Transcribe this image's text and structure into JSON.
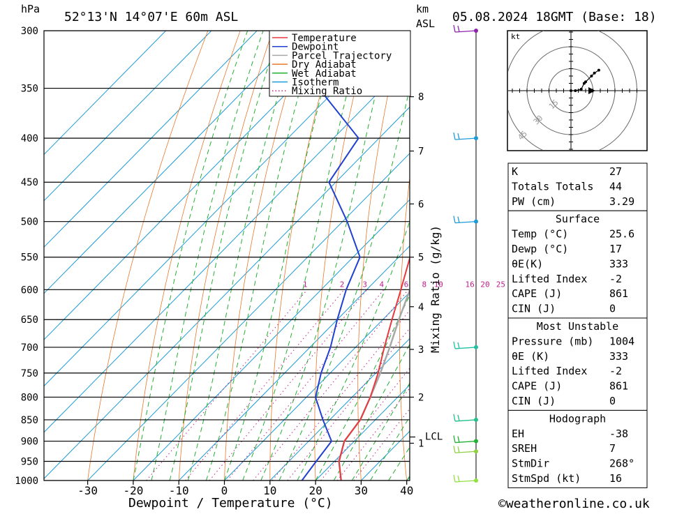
{
  "header": {
    "location": "52°13'N 14°07'E 60m ASL",
    "datetime": "05.08.2024 18GMT (Base: 18)",
    "pressure_unit": "hPa",
    "height_unit_line1": "km",
    "height_unit_line2": "ASL"
  },
  "footer": {
    "copyright": "©weatheronline.co.uk"
  },
  "chart_data": {
    "type": "line",
    "xlabel": "Dewpoint / Temperature (°C)",
    "ylabel": "hPa",
    "mixing_ratio_axis_label": "Mixing Ratio (g/kg)",
    "xlim": [
      -40,
      40
    ],
    "ylim": [
      1000,
      300
    ],
    "y_scale": "log",
    "skew": true,
    "grid": true,
    "legend_placement": "top-right",
    "x_ticks": [
      -30,
      -20,
      -10,
      0,
      10,
      20,
      30,
      40
    ],
    "pressure_levels": [
      300,
      350,
      400,
      450,
      500,
      550,
      600,
      650,
      700,
      750,
      800,
      850,
      900,
      950,
      1000
    ],
    "height_km_ticks": [
      {
        "km": 1,
        "p": 905
      },
      {
        "km": 2,
        "p": 800
      },
      {
        "km": 3,
        "p": 704
      },
      {
        "km": 4,
        "p": 628
      },
      {
        "km": 5,
        "p": 550
      },
      {
        "km": 6,
        "p": 477
      },
      {
        "km": 7,
        "p": 414
      },
      {
        "km": 8,
        "p": 358
      }
    ],
    "lcl": {
      "label": "LCL",
      "p": 890
    },
    "mixing_ratio_labels": [
      "1",
      "2",
      "3",
      "4",
      "6",
      "8",
      "10",
      "16",
      "20",
      "25"
    ],
    "legend": [
      "Temperature",
      "Dewpoint",
      "Parcel Trajectory",
      "Dry Adiabat",
      "Wet Adiabat",
      "Isotherm",
      "Mixing Ratio"
    ],
    "series": [
      {
        "name": "Temperature",
        "color": "#e8393f",
        "points": [
          [
            1000,
            25.6
          ],
          [
            950,
            21.0
          ],
          [
            900,
            17.8
          ],
          [
            850,
            16.7
          ],
          [
            800,
            14.0
          ],
          [
            750,
            10.5
          ],
          [
            700,
            6.3
          ],
          [
            650,
            2.0
          ],
          [
            600,
            -2.5
          ],
          [
            550,
            -7.5
          ],
          [
            500,
            -12.0
          ],
          [
            450,
            -18.5
          ],
          [
            400,
            -26.5
          ],
          [
            350,
            -34.5
          ],
          [
            300,
            -42.0
          ]
        ]
      },
      {
        "name": "Dewpoint",
        "color": "#2040d0",
        "points": [
          [
            1000,
            17.0
          ],
          [
            950,
            16.0
          ],
          [
            900,
            15.0
          ],
          [
            850,
            8.5
          ],
          [
            800,
            2.0
          ],
          [
            750,
            -2.0
          ],
          [
            700,
            -5.5
          ],
          [
            650,
            -10.0
          ],
          [
            600,
            -14.5
          ],
          [
            550,
            -18.5
          ],
          [
            500,
            -29.0
          ],
          [
            450,
            -41.5
          ],
          [
            400,
            -44.5
          ],
          [
            350,
            -64.0
          ],
          [
            300,
            -70.5
          ]
        ]
      },
      {
        "name": "Parcel Trajectory",
        "color": "#a8a8a8",
        "points": [
          [
            1000,
            25.6
          ],
          [
            950,
            21.0
          ],
          [
            900,
            17.8
          ],
          [
            850,
            16.7
          ],
          [
            800,
            14.0
          ],
          [
            750,
            11.0
          ],
          [
            700,
            7.5
          ],
          [
            650,
            3.5
          ],
          [
            600,
            -0.5
          ],
          [
            550,
            -5.0
          ],
          [
            500,
            -10.0
          ],
          [
            450,
            -16.5
          ],
          [
            400,
            -24.0
          ],
          [
            350,
            -32.0
          ],
          [
            300,
            -40.0
          ]
        ]
      }
    ]
  },
  "hodograph": {
    "unit": "kt",
    "ring_labels": [
      "15",
      "30",
      "45"
    ],
    "points": [
      [
        0.0,
        0.0
      ],
      [
        3.0,
        0.0
      ],
      [
        7.0,
        1.0
      ],
      [
        9.0,
        5.0
      ],
      [
        10.0,
        6.0
      ],
      [
        14.0,
        10.0
      ],
      [
        16.0,
        12.0
      ],
      [
        19.0,
        14.0
      ]
    ]
  },
  "indices": {
    "basic": [
      {
        "label": "K",
        "value": "27"
      },
      {
        "label": "Totals Totals",
        "value": "44"
      },
      {
        "label": "PW (cm)",
        "value": "3.29"
      }
    ],
    "surface": {
      "title": "Surface",
      "rows": [
        {
          "label": "Temp (°C)",
          "value": "25.6"
        },
        {
          "label": "Dewp (°C)",
          "value": "17"
        },
        {
          "label": "θE(K)",
          "value": "333"
        },
        {
          "label": "Lifted Index",
          "value": "-2"
        },
        {
          "label": "CAPE (J)",
          "value": "861"
        },
        {
          "label": "CIN (J)",
          "value": "0"
        }
      ]
    },
    "most_unstable": {
      "title": "Most Unstable",
      "rows": [
        {
          "label": "Pressure (mb)",
          "value": "1004"
        },
        {
          "label": "θE (K)",
          "value": "333"
        },
        {
          "label": "Lifted Index",
          "value": "-2"
        },
        {
          "label": "CAPE (J)",
          "value": "861"
        },
        {
          "label": "CIN (J)",
          "value": "0"
        }
      ]
    },
    "hodograph": {
      "title": "Hodograph",
      "rows": [
        {
          "label": "EH",
          "value": "-38"
        },
        {
          "label": "SREH",
          "value": "7"
        },
        {
          "label": "StmDir",
          "value": "268°"
        },
        {
          "label": "StmSpd (kt)",
          "value": "16"
        }
      ]
    }
  },
  "wind_barbs": [
    {
      "p": 300,
      "color": "#8e24aa"
    },
    {
      "p": 400,
      "color": "#1e9bd7"
    },
    {
      "p": 500,
      "color": "#1e9bd7"
    },
    {
      "p": 700,
      "color": "#22c0a0"
    },
    {
      "p": 850,
      "color": "#22c08a"
    },
    {
      "p": 900,
      "color": "#22b030"
    },
    {
      "p": 925,
      "color": "#90d040"
    },
    {
      "p": 1000,
      "color": "#90e040"
    }
  ]
}
